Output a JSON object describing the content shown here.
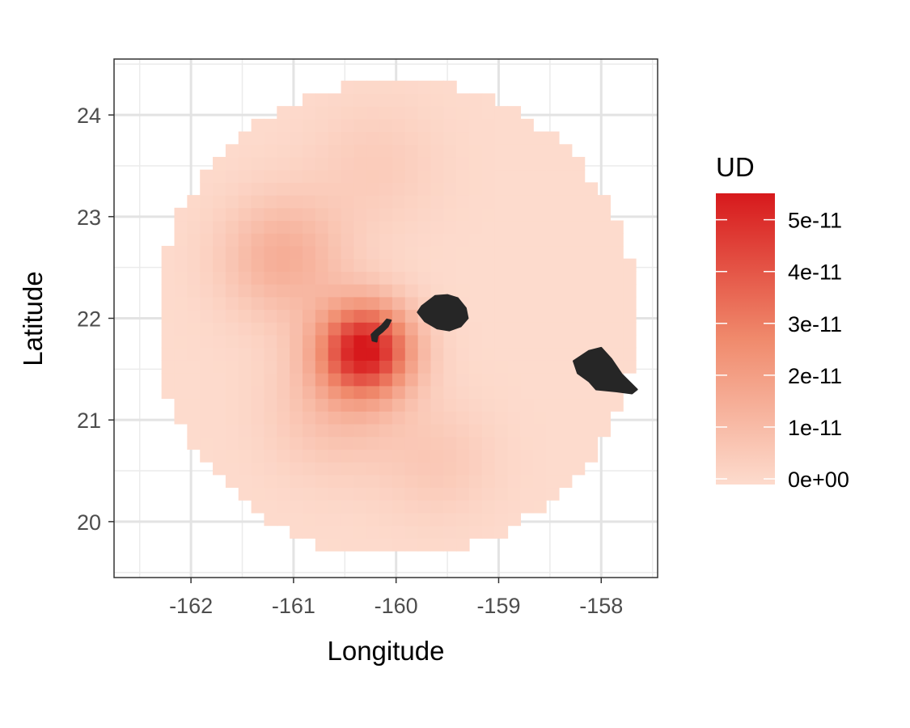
{
  "chart_data": {
    "type": "heatmap",
    "title": "",
    "xlabel": "Longitude",
    "ylabel": "Latitude",
    "xlim": [
      -162.75,
      -157.45
    ],
    "ylim": [
      19.45,
      24.55
    ],
    "x_ticks": [
      -162,
      -161,
      -160,
      -159,
      -158
    ],
    "y_ticks": [
      20,
      21,
      22,
      23,
      24
    ],
    "x_tick_labels": [
      "-162",
      "-161",
      "-160",
      "-159",
      "-158"
    ],
    "y_tick_labels": [
      "20",
      "21",
      "22",
      "23",
      "24"
    ],
    "grid": true,
    "grid_center": {
      "lon": -160.0,
      "lat": 22.0
    },
    "grid_radius_deg": 2.35,
    "cell_size_deg": 0.125,
    "density_peaks": [
      {
        "lon": -160.3,
        "lat": 21.7,
        "amplitude": 5.3e-11
      },
      {
        "lon": -161.1,
        "lat": 22.6,
        "amplitude": 1.5e-11
      },
      {
        "lon": -160.6,
        "lat": 21.1,
        "amplitude": 9e-12
      },
      {
        "lon": -159.6,
        "lat": 20.6,
        "amplitude": 6e-12
      },
      {
        "lon": -160.2,
        "lat": 23.5,
        "amplitude": 5e-12
      }
    ],
    "legend": {
      "title": "UD",
      "position": "right",
      "min": 0,
      "max": 5.4e-11,
      "breaks": [
        0,
        1e-11,
        2e-11,
        3e-11,
        4e-11,
        5e-11
      ],
      "labels": [
        "0e+00",
        "1e-11",
        "2e-11",
        "3e-11",
        "4e-11",
        "5e-11"
      ],
      "low_color": "#fddbcd",
      "high_color": "#d7191c"
    },
    "land_color": "#262626",
    "islands": [
      {
        "name": "Kauai",
        "outline": [
          [
            -159.79,
            22.06
          ],
          [
            -159.75,
            22.12
          ],
          [
            -159.62,
            22.22
          ],
          [
            -159.5,
            22.23
          ],
          [
            -159.4,
            22.2
          ],
          [
            -159.32,
            22.1
          ],
          [
            -159.3,
            22.0
          ],
          [
            -159.37,
            21.92
          ],
          [
            -159.48,
            21.88
          ],
          [
            -159.6,
            21.9
          ],
          [
            -159.72,
            21.97
          ]
        ]
      },
      {
        "name": "Niihau",
        "outline": [
          [
            -160.23,
            21.78
          ],
          [
            -160.24,
            21.84
          ],
          [
            -160.2,
            21.88
          ],
          [
            -160.14,
            21.93
          ],
          [
            -160.09,
            21.99
          ],
          [
            -160.05,
            21.98
          ],
          [
            -160.08,
            21.92
          ],
          [
            -160.13,
            21.87
          ],
          [
            -160.18,
            21.83
          ],
          [
            -160.19,
            21.77
          ]
        ]
      },
      {
        "name": "Oahu",
        "outline": [
          [
            -158.27,
            21.58
          ],
          [
            -158.12,
            21.68
          ],
          [
            -158.0,
            21.71
          ],
          [
            -157.9,
            21.6
          ],
          [
            -157.8,
            21.45
          ],
          [
            -157.65,
            21.3
          ],
          [
            -157.7,
            21.26
          ],
          [
            -157.85,
            21.28
          ],
          [
            -158.05,
            21.3
          ],
          [
            -158.12,
            21.38
          ],
          [
            -158.23,
            21.46
          ]
        ]
      }
    ]
  }
}
